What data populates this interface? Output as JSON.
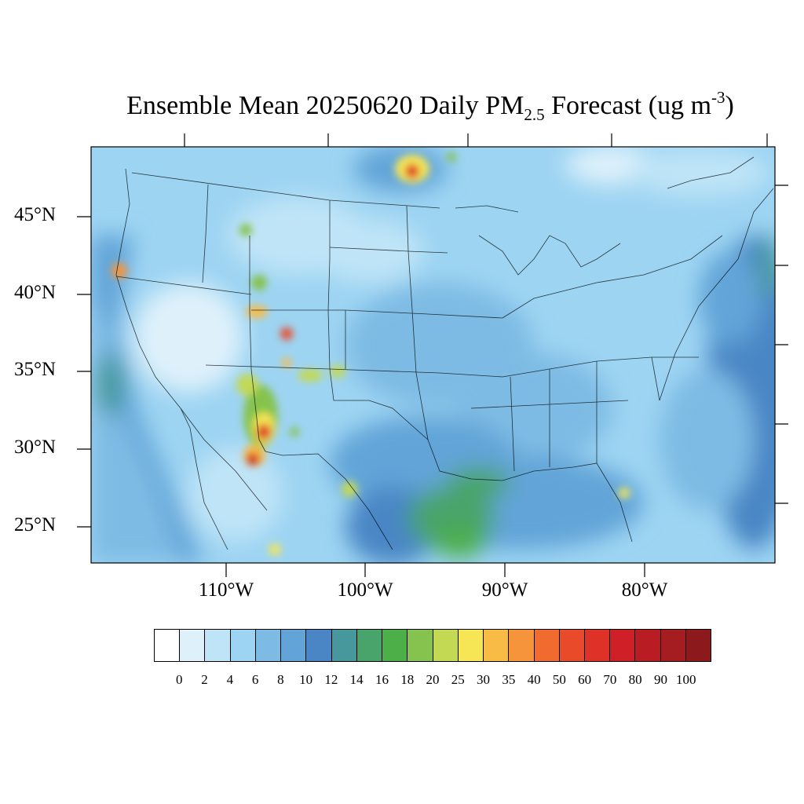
{
  "title": {
    "prefix": "Ensemble Mean 20250620 Daily PM",
    "subscript": "2.5",
    "mid": " Forecast (ug m",
    "superscript": "-3",
    "suffix": ")"
  },
  "map": {
    "lat_labels": [
      "45°N",
      "40°N",
      "35°N",
      "30°N",
      "25°N"
    ],
    "lon_labels": [
      "110°W",
      "100°W",
      "90°W",
      "80°W"
    ]
  },
  "colorbar": {
    "labels": [
      "0",
      "2",
      "4",
      "6",
      "8",
      "10",
      "12",
      "14",
      "16",
      "18",
      "20",
      "25",
      "30",
      "35",
      "40",
      "50",
      "60",
      "70",
      "80",
      "90",
      "100"
    ],
    "colors": [
      "#ffffff",
      "#def1fb",
      "#bfe4f7",
      "#9dd4f2",
      "#7ebbe4",
      "#62a4d8",
      "#4a86c5",
      "#46989c",
      "#48a46a",
      "#4caf48",
      "#85c34e",
      "#c3d954",
      "#f6e655",
      "#f8bb45",
      "#f6943b",
      "#f26b2e",
      "#e94b2a",
      "#de3127",
      "#cf2027",
      "#b91c23",
      "#a51d21",
      "#8c1a1c"
    ]
  }
}
